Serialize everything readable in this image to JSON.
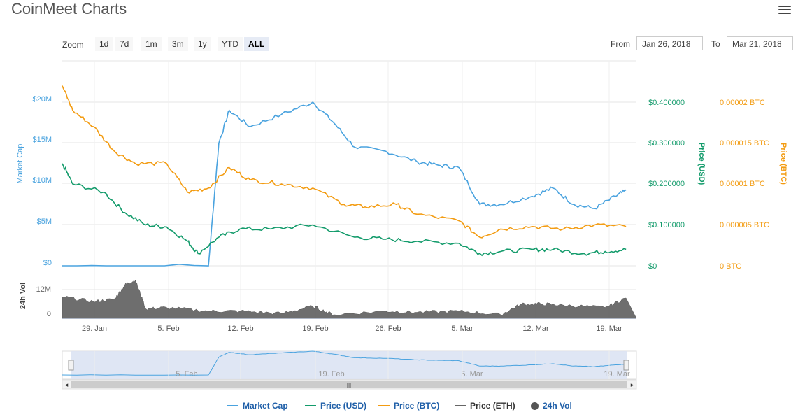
{
  "app": {
    "title": "CoinMeet Charts"
  },
  "zoom": {
    "label": "Zoom",
    "buttons": [
      "1d",
      "7d",
      "1m",
      "3m",
      "1y",
      "YTD",
      "ALL"
    ],
    "active": "ALL"
  },
  "range": {
    "from_label": "From",
    "from_value": "Jan 26, 2018",
    "to_label": "To",
    "to_value": "Mar 21, 2018"
  },
  "colors": {
    "market_cap": "#4aa3df",
    "price_usd": "#139b6b",
    "price_btc": "#f39c12",
    "price_eth": "#666666",
    "volume": "#555555",
    "navigator_fill": "#dbe3f3"
  },
  "chart_data": {
    "type": "line",
    "x_ticks": [
      "29. Jan",
      "5. Feb",
      "12. Feb",
      "19. Feb",
      "26. Feb",
      "5. Mar",
      "12. Mar",
      "19. Mar"
    ],
    "axes": {
      "left": {
        "label": "Market Cap",
        "ticks": [
          "$0",
          "$5M",
          "$10M",
          "$15M",
          "$20M"
        ]
      },
      "right_usd": {
        "label": "Price (USD)",
        "ticks": [
          "$0",
          "$0.100000",
          "$0.200000",
          "$0.300000",
          "$0.400000"
        ]
      },
      "right_btc": {
        "label": "Price (BTC)",
        "ticks": [
          "0 BTC",
          "0.000005 BTC",
          "0.00001 BTC",
          "0.000015 BTC",
          "0.00002 BTC"
        ]
      },
      "volume": {
        "label": "24h Vol",
        "ticks": [
          "0",
          "12M"
        ]
      }
    },
    "x_range": [
      "2018-01-26",
      "2018-03-21"
    ],
    "series": [
      {
        "name": "Market Cap",
        "unit": "USD",
        "ylim": [
          0,
          20000000
        ],
        "dates": [
          "2018-01-26",
          "2018-02-09",
          "2018-02-10",
          "2018-02-11",
          "2018-02-13",
          "2018-02-16",
          "2018-02-19",
          "2018-02-21",
          "2018-02-23",
          "2018-02-26",
          "2018-03-01",
          "2018-03-03",
          "2018-03-05",
          "2018-03-07",
          "2018-03-09",
          "2018-03-12",
          "2018-03-14",
          "2018-03-16",
          "2018-03-18",
          "2018-03-20",
          "2018-03-21"
        ],
        "values": [
          0,
          0,
          15000000,
          19000000,
          17000000,
          18500000,
          20000000,
          17500000,
          14500000,
          14000000,
          12700000,
          12300000,
          12000000,
          7500000,
          7500000,
          8500000,
          9500000,
          7500000,
          7000000,
          8500000,
          9200000
        ]
      },
      {
        "name": "Price (USD)",
        "unit": "USD",
        "ylim": [
          0,
          0.4
        ],
        "dates": [
          "2018-01-26",
          "2018-01-27",
          "2018-01-30",
          "2018-02-01",
          "2018-02-03",
          "2018-02-05",
          "2018-02-07",
          "2018-02-08",
          "2018-02-10",
          "2018-02-12",
          "2018-02-15",
          "2018-02-19",
          "2018-02-23",
          "2018-02-26",
          "2018-03-01",
          "2018-03-05",
          "2018-03-07",
          "2018-03-09",
          "2018-03-12",
          "2018-03-14",
          "2018-03-17",
          "2018-03-19",
          "2018-03-21"
        ],
        "values": [
          0.25,
          0.2,
          0.18,
          0.13,
          0.1,
          0.095,
          0.06,
          0.03,
          0.07,
          0.09,
          0.09,
          0.1,
          0.07,
          0.065,
          0.06,
          0.055,
          0.03,
          0.035,
          0.04,
          0.04,
          0.03,
          0.035,
          0.04
        ]
      },
      {
        "name": "Price (BTC)",
        "unit": "BTC",
        "ylim": [
          0,
          2e-05
        ],
        "dates": [
          "2018-01-26",
          "2018-01-27",
          "2018-01-29",
          "2018-01-31",
          "2018-02-02",
          "2018-02-05",
          "2018-02-07",
          "2018-02-09",
          "2018-02-11",
          "2018-02-13",
          "2018-02-16",
          "2018-02-19",
          "2018-02-22",
          "2018-02-24",
          "2018-02-27",
          "2018-03-01",
          "2018-03-05",
          "2018-03-07",
          "2018-03-09",
          "2018-03-12",
          "2018-03-15",
          "2018-03-18",
          "2018-03-21"
        ],
        "values": [
          2.2e-05,
          1.9e-05,
          1.7e-05,
          1.4e-05,
          1.25e-05,
          1.25e-05,
          9e-06,
          9.5e-06,
          1.2e-05,
          1.05e-05,
          1e-05,
          9.5e-06,
          7.5e-06,
          7.2e-06,
          7.5e-06,
          6.3e-06,
          5.5e-06,
          3.5e-06,
          4.5e-06,
          4.8e-06,
          4.5e-06,
          5e-06,
          4.8e-06
        ]
      },
      {
        "name": "Price (ETH)",
        "values": []
      },
      {
        "name": "24h Vol",
        "unit": "USD",
        "ylim": [
          0,
          12000000
        ],
        "dates": [
          "2018-01-26",
          "2018-01-29",
          "2018-01-31",
          "2018-02-01",
          "2018-02-02",
          "2018-02-03",
          "2018-02-05",
          "2018-02-09",
          "2018-02-12",
          "2018-02-16",
          "2018-02-19",
          "2018-02-21",
          "2018-02-26",
          "2018-03-01",
          "2018-03-05",
          "2018-03-09",
          "2018-03-11",
          "2018-03-13",
          "2018-03-15",
          "2018-03-19",
          "2018-03-21"
        ],
        "values": [
          9000000,
          7000000,
          8000000,
          14000000,
          16000000,
          4000000,
          4500000,
          3000000,
          3000000,
          2000000,
          5000000,
          1500000,
          3000000,
          2500000,
          3000000,
          1500000,
          6000000,
          6000000,
          5500000,
          4500000,
          8500000
        ]
      }
    ]
  },
  "navigator": {
    "labels": [
      "5. Feb",
      "19. Feb",
      "5. Mar",
      "19. Mar"
    ]
  }
}
